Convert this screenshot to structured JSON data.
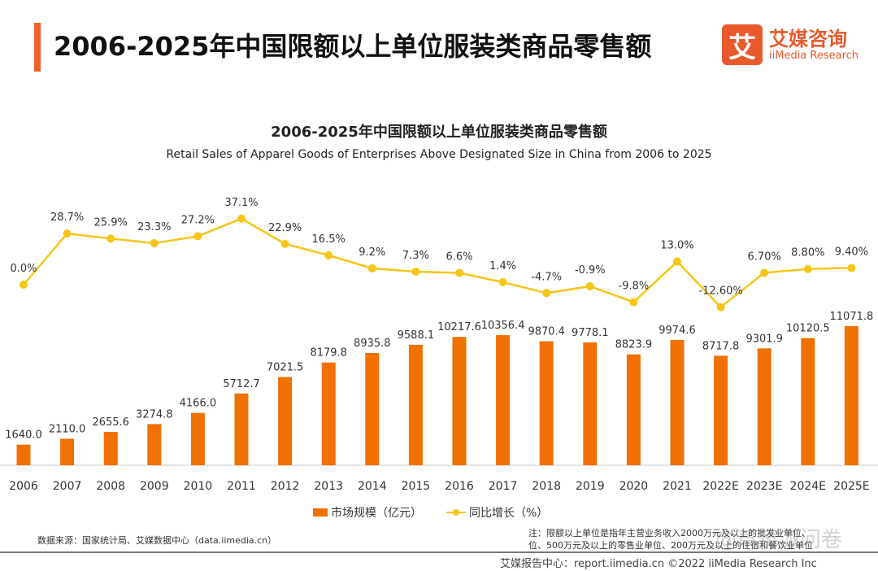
{
  "header": {
    "title": "2006-2025年中国限额以上单位服装类商品零售额",
    "logo_mark": "艾",
    "logo_cn": "艾媒咨询",
    "logo_en": "iiMedia Research"
  },
  "chart_data": {
    "type": "bar+line",
    "title": "2006-2025年中国限额以上单位服装类商品零售额",
    "subtitle": "Retail Sales of Apparel Goods of Enterprises Above Designated Size in China from 2006 to 2025",
    "categories": [
      "2006",
      "2007",
      "2008",
      "2009",
      "2010",
      "2011",
      "2012",
      "2013",
      "2014",
      "2015",
      "2016",
      "2017",
      "2018",
      "2019",
      "2020",
      "2021",
      "2022E",
      "2023E",
      "2024E",
      "2025E"
    ],
    "series": [
      {
        "name": "市场规模（亿元）",
        "type": "bar",
        "color": "#f07000",
        "values": [
          1640.0,
          2110.0,
          2655.6,
          3274.8,
          4166.0,
          5712.7,
          7021.5,
          8179.8,
          8935.8,
          9588.1,
          10217.6,
          10356.4,
          9870.4,
          9778.1,
          8823.9,
          9974.6,
          8717.8,
          9301.9,
          10120.5,
          11071.8
        ],
        "labels": [
          "1640.0",
          "2110.0",
          "2655.6",
          "3274.8",
          "4166.0",
          "5712.7",
          "7021.5",
          "8179.8",
          "8935.8",
          "9588.1",
          "10217.6",
          "10356.4",
          "9870.4",
          "9778.1",
          "8823.9",
          "9974.6",
          "8717.8",
          "9301.9",
          "10120.5",
          "11071.8"
        ]
      },
      {
        "name": "同比增长（%）",
        "type": "line",
        "color": "#f5c518",
        "values": [
          0.0,
          28.7,
          25.9,
          23.3,
          27.2,
          37.1,
          22.9,
          16.5,
          9.2,
          7.3,
          6.6,
          1.4,
          -4.7,
          -0.9,
          -9.8,
          13.0,
          -12.6,
          6.7,
          8.8,
          9.4
        ],
        "labels": [
          "0.0%",
          "28.7%",
          "25.9%",
          "23.3%",
          "27.2%",
          "37.1%",
          "22.9%",
          "16.5%",
          "9.2%",
          "7.3%",
          "6.6%",
          "1.4%",
          "-4.7%",
          "-0.9%",
          "-9.8%",
          "13.0%",
          "-12.60%",
          "6.70%",
          "8.80%",
          "9.40%"
        ]
      }
    ],
    "legend": "bottom",
    "grid": false
  },
  "footer": {
    "source": "数据来源：国家统计局、艾媒数据中心（data.iimedia.cn）",
    "note_line1": "注：限额以上单位是指年主营业务收入2000万元及以上的批发业单位、",
    "note_line2": "位、500万元及以上的零售业单位、200万元及以上的住宿和餐饮业单位",
    "report": "艾媒报告中心：report.iimedia.cn   ©2022  iiMedia Research  Inc",
    "watermark": "@草莓派问卷"
  }
}
